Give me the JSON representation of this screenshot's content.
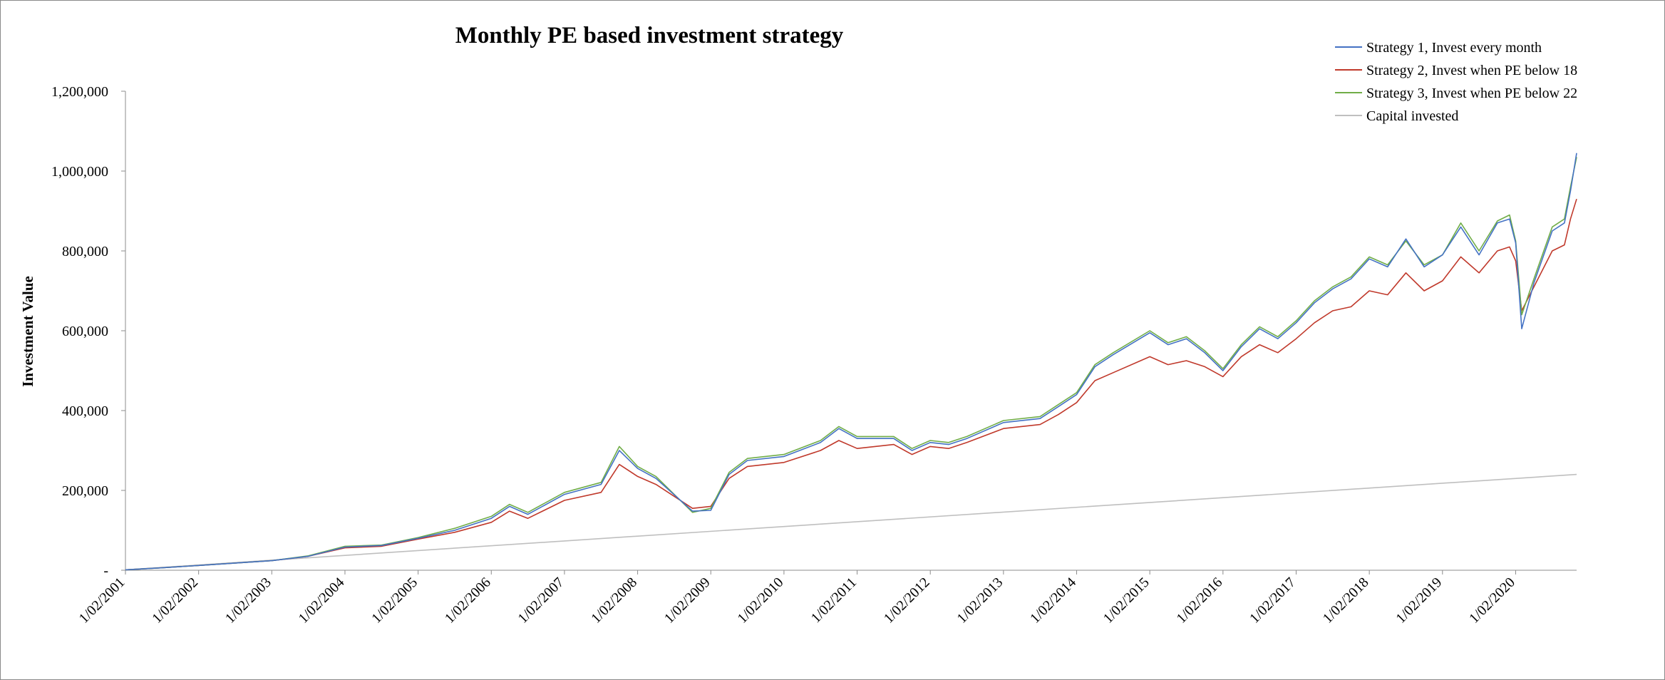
{
  "chart_data": {
    "type": "line",
    "title": "Monthly PE based investment strategy",
    "xlabel": "",
    "ylabel": "Investment Value",
    "ylim": [
      0,
      1200000
    ],
    "yticks": [
      0,
      200000,
      400000,
      600000,
      800000,
      1000000,
      1200000
    ],
    "ytick_labels": [
      "-",
      "200,000",
      "400,000",
      "600,000",
      "800,000",
      "1,000,000",
      "1,200,000"
    ],
    "x_start": "1/02/2001",
    "x_end": "1/12/2020",
    "xtick_labels": [
      "1/02/2001",
      "1/02/2002",
      "1/02/2003",
      "1/02/2004",
      "1/02/2005",
      "1/02/2006",
      "1/02/2007",
      "1/02/2008",
      "1/02/2009",
      "1/02/2010",
      "1/02/2011",
      "1/02/2012",
      "1/02/2013",
      "1/02/2014",
      "1/02/2015",
      "1/02/2016",
      "1/02/2017",
      "1/02/2018",
      "1/02/2019",
      "1/02/2020"
    ],
    "grid": false,
    "legend_position": "top-right",
    "series": [
      {
        "name": "Strategy 1, Invest every month",
        "color": "#4472c4",
        "points": [
          [
            "1/02/2001",
            1000
          ],
          [
            "1/08/2001",
            6000
          ],
          [
            "1/02/2002",
            12000
          ],
          [
            "1/08/2002",
            18000
          ],
          [
            "1/02/2003",
            24000
          ],
          [
            "1/08/2003",
            35000
          ],
          [
            "1/02/2004",
            58000
          ],
          [
            "1/08/2004",
            62000
          ],
          [
            "1/02/2005",
            80000
          ],
          [
            "1/08/2005",
            100000
          ],
          [
            "1/02/2006",
            130000
          ],
          [
            "1/05/2006",
            160000
          ],
          [
            "1/08/2006",
            140000
          ],
          [
            "1/02/2007",
            190000
          ],
          [
            "1/08/2007",
            215000
          ],
          [
            "1/11/2007",
            300000
          ],
          [
            "1/02/2008",
            255000
          ],
          [
            "1/05/2008",
            230000
          ],
          [
            "1/11/2008",
            148000
          ],
          [
            "1/02/2009",
            150000
          ],
          [
            "1/05/2009",
            240000
          ],
          [
            "1/08/2009",
            275000
          ],
          [
            "1/02/2010",
            285000
          ],
          [
            "1/08/2010",
            320000
          ],
          [
            "1/11/2010",
            355000
          ],
          [
            "1/02/2011",
            330000
          ],
          [
            "1/08/2011",
            330000
          ],
          [
            "1/11/2011",
            300000
          ],
          [
            "1/02/2012",
            320000
          ],
          [
            "1/05/2012",
            315000
          ],
          [
            "1/08/2012",
            330000
          ],
          [
            "1/02/2013",
            370000
          ],
          [
            "1/08/2013",
            380000
          ],
          [
            "1/11/2013",
            410000
          ],
          [
            "1/02/2014",
            440000
          ],
          [
            "1/05/2014",
            510000
          ],
          [
            "1/08/2014",
            540000
          ],
          [
            "1/02/2015",
            595000
          ],
          [
            "1/05/2015",
            565000
          ],
          [
            "1/08/2015",
            580000
          ],
          [
            "1/11/2015",
            545000
          ],
          [
            "1/02/2016",
            500000
          ],
          [
            "1/05/2016",
            560000
          ],
          [
            "1/08/2016",
            605000
          ],
          [
            "1/11/2016",
            580000
          ],
          [
            "1/02/2017",
            620000
          ],
          [
            "1/05/2017",
            670000
          ],
          [
            "1/08/2017",
            705000
          ],
          [
            "1/11/2017",
            730000
          ],
          [
            "1/02/2018",
            780000
          ],
          [
            "1/05/2018",
            760000
          ],
          [
            "1/08/2018",
            830000
          ],
          [
            "1/11/2018",
            760000
          ],
          [
            "1/02/2019",
            790000
          ],
          [
            "1/05/2019",
            860000
          ],
          [
            "1/08/2019",
            790000
          ],
          [
            "1/11/2019",
            870000
          ],
          [
            "1/01/2020",
            880000
          ],
          [
            "1/02/2020",
            820000
          ],
          [
            "1/03/2020",
            605000
          ],
          [
            "1/05/2020",
            720000
          ],
          [
            "1/08/2020",
            850000
          ],
          [
            "1/10/2020",
            870000
          ],
          [
            "1/11/2020",
            950000
          ],
          [
            "1/12/2020",
            1045000
          ]
        ]
      },
      {
        "name": "Strategy 2, Invest when PE below 18",
        "color": "#c0392b",
        "points": [
          [
            "1/02/2001",
            1000
          ],
          [
            "1/08/2001",
            6000
          ],
          [
            "1/02/2002",
            12000
          ],
          [
            "1/08/2002",
            18000
          ],
          [
            "1/02/2003",
            24000
          ],
          [
            "1/08/2003",
            35000
          ],
          [
            "1/02/2004",
            56000
          ],
          [
            "1/08/2004",
            60000
          ],
          [
            "1/02/2005",
            78000
          ],
          [
            "1/08/2005",
            95000
          ],
          [
            "1/02/2006",
            120000
          ],
          [
            "1/05/2006",
            148000
          ],
          [
            "1/08/2006",
            130000
          ],
          [
            "1/02/2007",
            175000
          ],
          [
            "1/08/2007",
            195000
          ],
          [
            "1/11/2007",
            265000
          ],
          [
            "1/02/2008",
            235000
          ],
          [
            "1/05/2008",
            215000
          ],
          [
            "1/11/2008",
            155000
          ],
          [
            "1/02/2009",
            160000
          ],
          [
            "1/05/2009",
            230000
          ],
          [
            "1/08/2009",
            260000
          ],
          [
            "1/02/2010",
            270000
          ],
          [
            "1/08/2010",
            300000
          ],
          [
            "1/11/2010",
            325000
          ],
          [
            "1/02/2011",
            305000
          ],
          [
            "1/08/2011",
            315000
          ],
          [
            "1/11/2011",
            290000
          ],
          [
            "1/02/2012",
            310000
          ],
          [
            "1/05/2012",
            305000
          ],
          [
            "1/08/2012",
            320000
          ],
          [
            "1/02/2013",
            355000
          ],
          [
            "1/08/2013",
            365000
          ],
          [
            "1/11/2013",
            390000
          ],
          [
            "1/02/2014",
            420000
          ],
          [
            "1/05/2014",
            475000
          ],
          [
            "1/08/2014",
            495000
          ],
          [
            "1/02/2015",
            535000
          ],
          [
            "1/05/2015",
            515000
          ],
          [
            "1/08/2015",
            525000
          ],
          [
            "1/11/2015",
            510000
          ],
          [
            "1/02/2016",
            485000
          ],
          [
            "1/05/2016",
            535000
          ],
          [
            "1/08/2016",
            565000
          ],
          [
            "1/11/2016",
            545000
          ],
          [
            "1/02/2017",
            580000
          ],
          [
            "1/05/2017",
            620000
          ],
          [
            "1/08/2017",
            650000
          ],
          [
            "1/11/2017",
            660000
          ],
          [
            "1/02/2018",
            700000
          ],
          [
            "1/05/2018",
            690000
          ],
          [
            "1/08/2018",
            745000
          ],
          [
            "1/11/2018",
            700000
          ],
          [
            "1/02/2019",
            725000
          ],
          [
            "1/05/2019",
            785000
          ],
          [
            "1/08/2019",
            745000
          ],
          [
            "1/11/2019",
            800000
          ],
          [
            "1/01/2020",
            810000
          ],
          [
            "1/02/2020",
            775000
          ],
          [
            "1/03/2020",
            650000
          ],
          [
            "1/05/2020",
            710000
          ],
          [
            "1/08/2020",
            800000
          ],
          [
            "1/10/2020",
            815000
          ],
          [
            "1/11/2020",
            880000
          ],
          [
            "1/12/2020",
            930000
          ]
        ]
      },
      {
        "name": "Strategy 3, Invest when PE below 22",
        "color": "#70ad47",
        "points": [
          [
            "1/02/2001",
            1000
          ],
          [
            "1/08/2001",
            6000
          ],
          [
            "1/02/2002",
            12000
          ],
          [
            "1/08/2002",
            18000
          ],
          [
            "1/02/2003",
            24000
          ],
          [
            "1/08/2003",
            36000
          ],
          [
            "1/02/2004",
            60000
          ],
          [
            "1/08/2004",
            63000
          ],
          [
            "1/02/2005",
            82000
          ],
          [
            "1/08/2005",
            105000
          ],
          [
            "1/02/2006",
            135000
          ],
          [
            "1/05/2006",
            165000
          ],
          [
            "1/08/2006",
            145000
          ],
          [
            "1/02/2007",
            195000
          ],
          [
            "1/08/2007",
            220000
          ],
          [
            "1/11/2007",
            310000
          ],
          [
            "1/02/2008",
            260000
          ],
          [
            "1/05/2008",
            235000
          ],
          [
            "1/11/2008",
            145000
          ],
          [
            "1/02/2009",
            155000
          ],
          [
            "1/05/2009",
            245000
          ],
          [
            "1/08/2009",
            280000
          ],
          [
            "1/02/2010",
            290000
          ],
          [
            "1/08/2010",
            325000
          ],
          [
            "1/11/2010",
            360000
          ],
          [
            "1/02/2011",
            335000
          ],
          [
            "1/08/2011",
            335000
          ],
          [
            "1/11/2011",
            305000
          ],
          [
            "1/02/2012",
            325000
          ],
          [
            "1/05/2012",
            320000
          ],
          [
            "1/08/2012",
            335000
          ],
          [
            "1/02/2013",
            375000
          ],
          [
            "1/08/2013",
            385000
          ],
          [
            "1/11/2013",
            415000
          ],
          [
            "1/02/2014",
            445000
          ],
          [
            "1/05/2014",
            515000
          ],
          [
            "1/08/2014",
            545000
          ],
          [
            "1/02/2015",
            600000
          ],
          [
            "1/05/2015",
            570000
          ],
          [
            "1/08/2015",
            585000
          ],
          [
            "1/11/2015",
            550000
          ],
          [
            "1/02/2016",
            505000
          ],
          [
            "1/05/2016",
            565000
          ],
          [
            "1/08/2016",
            610000
          ],
          [
            "1/11/2016",
            585000
          ],
          [
            "1/02/2017",
            625000
          ],
          [
            "1/05/2017",
            675000
          ],
          [
            "1/08/2017",
            710000
          ],
          [
            "1/11/2017",
            735000
          ],
          [
            "1/02/2018",
            785000
          ],
          [
            "1/05/2018",
            765000
          ],
          [
            "1/08/2018",
            825000
          ],
          [
            "1/11/2018",
            765000
          ],
          [
            "1/02/2019",
            790000
          ],
          [
            "1/05/2019",
            870000
          ],
          [
            "1/08/2019",
            800000
          ],
          [
            "1/11/2019",
            875000
          ],
          [
            "1/01/2020",
            890000
          ],
          [
            "1/02/2020",
            825000
          ],
          [
            "1/03/2020",
            640000
          ],
          [
            "1/05/2020",
            730000
          ],
          [
            "1/08/2020",
            860000
          ],
          [
            "1/10/2020",
            880000
          ],
          [
            "1/11/2020",
            960000
          ],
          [
            "1/12/2020",
            1035000
          ]
        ]
      },
      {
        "name": "Capital invested",
        "color": "#bfbfbf",
        "points": [
          [
            "1/02/2001",
            1000
          ],
          [
            "1/12/2020",
            240000
          ]
        ]
      }
    ]
  }
}
